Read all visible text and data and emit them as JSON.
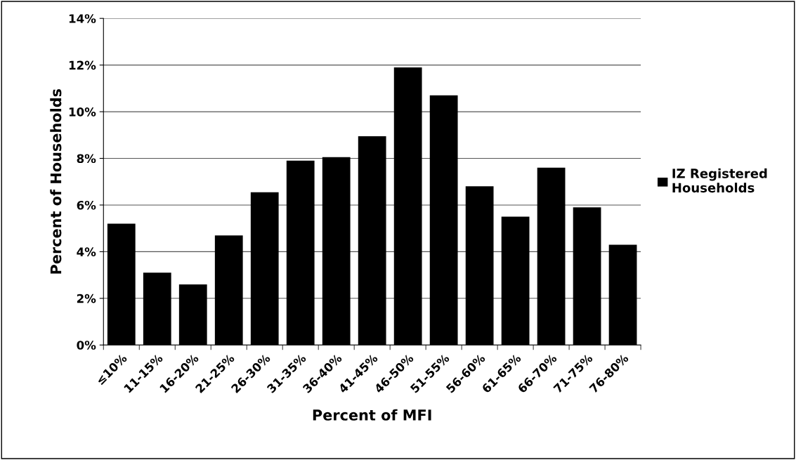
{
  "chart_data": {
    "type": "bar",
    "xlabel": "Percent of MFI",
    "ylabel": "Percent of Households",
    "categories": [
      "≤10%",
      "11-15%",
      "16-20%",
      "21-25%",
      "26-30%",
      "31-35%",
      "36-40%",
      "41-45%",
      "46-50%",
      "51-55%",
      "56-60%",
      "61-65%",
      "66-70%",
      "71-75%",
      "76-80%"
    ],
    "series": [
      {
        "name": "IZ Registered Households",
        "color": "#000000",
        "values": [
          5.2,
          3.1,
          2.6,
          4.7,
          6.55,
          7.9,
          8.05,
          8.95,
          11.9,
          10.7,
          6.8,
          5.5,
          7.6,
          5.9,
          4.3
        ]
      }
    ],
    "ylim": [
      0,
      14
    ],
    "yticks": [
      {
        "value": 0,
        "label": "0%"
      },
      {
        "value": 2,
        "label": "2%"
      },
      {
        "value": 4,
        "label": "4%"
      },
      {
        "value": 6,
        "label": "6%"
      },
      {
        "value": 8,
        "label": "8%"
      },
      {
        "value": 10,
        "label": "10%"
      },
      {
        "value": 12,
        "label": "12%"
      },
      {
        "value": 14,
        "label": "14%"
      }
    ],
    "grid": "y",
    "legend": "right"
  }
}
